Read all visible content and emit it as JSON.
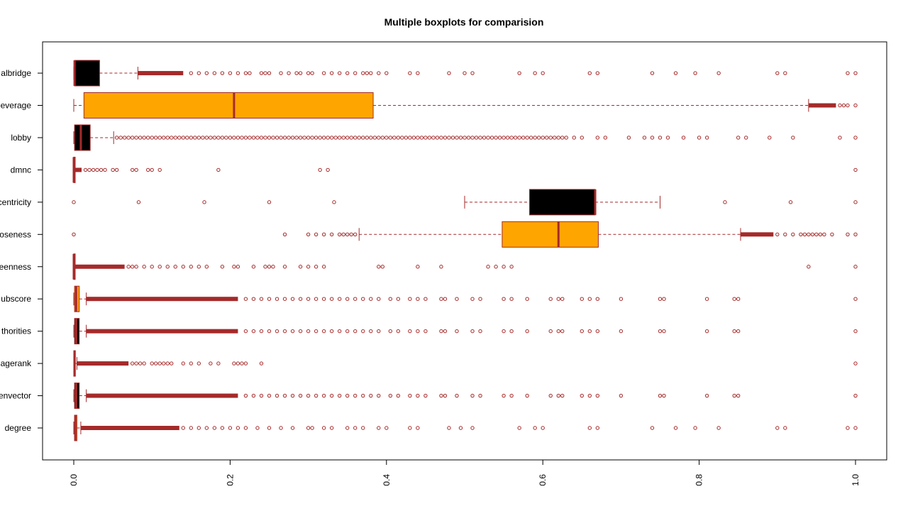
{
  "chart_data": {
    "type": "boxplot",
    "title": "Multiple boxplots for comparision",
    "xlabel": "",
    "ylabel": "",
    "horizontal": true,
    "xlim": [
      0,
      1
    ],
    "x_ticks": [
      "0.0",
      "0.2",
      "0.4",
      "0.6",
      "0.8",
      "1.0"
    ],
    "x_tick_values": [
      0,
      0.2,
      0.4,
      0.6,
      0.8,
      1.0
    ],
    "grid": false,
    "legend": "none",
    "colors": {
      "outline": "#a52a2a",
      "fill_black": "#000000",
      "fill_orange": "#ffa500"
    },
    "series": [
      {
        "name": "degree",
        "label": "degree",
        "fill": "#ffa500",
        "whisker_low": 0.0,
        "q1": 0.001,
        "median": 0.002,
        "q3": 0.004,
        "whisker_high": 0.009,
        "dense_outliers": [
          0.009,
          0.135
        ],
        "outliers": [
          0.14,
          0.15,
          0.16,
          0.17,
          0.18,
          0.19,
          0.2,
          0.21,
          0.22,
          0.235,
          0.25,
          0.265,
          0.28,
          0.3,
          0.305,
          0.32,
          0.33,
          0.35,
          0.36,
          0.37,
          0.39,
          0.4,
          0.43,
          0.44,
          0.48,
          0.495,
          0.51,
          0.57,
          0.59,
          0.6,
          0.66,
          0.67,
          0.74,
          0.77,
          0.795,
          0.825,
          0.9,
          0.91,
          0.99,
          1.0
        ]
      },
      {
        "name": "eigenvector",
        "label": "envector",
        "fill": "#000000",
        "whisker_low": 0.0,
        "q1": 0.001,
        "median": 0.003,
        "q3": 0.007,
        "whisker_high": 0.016,
        "dense_outliers": [
          0.016,
          0.21
        ],
        "outliers": [
          0.22,
          0.23,
          0.24,
          0.25,
          0.26,
          0.27,
          0.28,
          0.29,
          0.3,
          0.31,
          0.32,
          0.33,
          0.34,
          0.35,
          0.36,
          0.37,
          0.38,
          0.39,
          0.405,
          0.415,
          0.43,
          0.44,
          0.45,
          0.47,
          0.475,
          0.49,
          0.51,
          0.52,
          0.55,
          0.56,
          0.58,
          0.61,
          0.62,
          0.625,
          0.65,
          0.66,
          0.67,
          0.7,
          0.75,
          0.755,
          0.81,
          0.845,
          0.85,
          1.0
        ]
      },
      {
        "name": "pagerank",
        "label": "agerank",
        "fill": "#ffa500",
        "whisker_low": 0.0,
        "q1": 0.0,
        "median": 0.001,
        "q3": 0.002,
        "whisker_high": 0.004,
        "dense_outliers": [
          0.004,
          0.07
        ],
        "outliers": [
          0.075,
          0.08,
          0.085,
          0.09,
          0.1,
          0.105,
          0.11,
          0.115,
          0.12,
          0.125,
          0.14,
          0.15,
          0.16,
          0.175,
          0.185,
          0.205,
          0.21,
          0.215,
          0.22,
          0.24,
          1.0
        ]
      },
      {
        "name": "authorities",
        "label": "thorities",
        "fill": "#000000",
        "whisker_low": 0.0,
        "q1": 0.001,
        "median": 0.003,
        "q3": 0.007,
        "whisker_high": 0.016,
        "dense_outliers": [
          0.016,
          0.21
        ],
        "outliers": [
          0.22,
          0.23,
          0.24,
          0.25,
          0.26,
          0.27,
          0.28,
          0.29,
          0.3,
          0.31,
          0.32,
          0.33,
          0.34,
          0.35,
          0.36,
          0.37,
          0.38,
          0.39,
          0.405,
          0.415,
          0.43,
          0.44,
          0.45,
          0.47,
          0.475,
          0.49,
          0.51,
          0.52,
          0.55,
          0.56,
          0.58,
          0.61,
          0.62,
          0.625,
          0.65,
          0.66,
          0.67,
          0.7,
          0.75,
          0.755,
          0.81,
          0.845,
          0.85,
          1.0
        ]
      },
      {
        "name": "hubscore",
        "label": "ubscore",
        "fill": "#ffa500",
        "whisker_low": 0.0,
        "q1": 0.001,
        "median": 0.003,
        "q3": 0.007,
        "whisker_high": 0.016,
        "dense_outliers": [
          0.016,
          0.21
        ],
        "outliers": [
          0.22,
          0.23,
          0.24,
          0.25,
          0.26,
          0.27,
          0.28,
          0.29,
          0.3,
          0.31,
          0.32,
          0.33,
          0.34,
          0.35,
          0.36,
          0.37,
          0.38,
          0.39,
          0.405,
          0.415,
          0.43,
          0.44,
          0.45,
          0.47,
          0.475,
          0.49,
          0.51,
          0.52,
          0.55,
          0.56,
          0.58,
          0.61,
          0.62,
          0.625,
          0.65,
          0.66,
          0.67,
          0.7,
          0.75,
          0.755,
          0.81,
          0.845,
          0.85,
          1.0
        ]
      },
      {
        "name": "betweenness",
        "label": "eenness",
        "fill": "#000000",
        "whisker_low": 0.0,
        "q1": 0.0,
        "median": 0.0,
        "q3": 0.0,
        "whisker_high": 0.001,
        "dense_outliers": [
          0.001,
          0.065
        ],
        "outliers": [
          0.07,
          0.075,
          0.08,
          0.09,
          0.1,
          0.11,
          0.12,
          0.13,
          0.14,
          0.15,
          0.16,
          0.17,
          0.19,
          0.205,
          0.21,
          0.23,
          0.245,
          0.25,
          0.255,
          0.27,
          0.29,
          0.3,
          0.31,
          0.32,
          0.39,
          0.395,
          0.44,
          0.47,
          0.53,
          0.54,
          0.55,
          0.56,
          0.94,
          1.0
        ]
      },
      {
        "name": "closeness",
        "label": "oseness",
        "fill": "#ffa500",
        "whisker_low": 0.365,
        "q1": 0.548,
        "median": 0.62,
        "q3": 0.671,
        "whisker_high": 0.853,
        "dense_outliers": [
          0.853,
          0.895
        ],
        "outliers": [
          0.0,
          0.27,
          0.3,
          0.31,
          0.32,
          0.33,
          0.34,
          0.345,
          0.35,
          0.355,
          0.36,
          0.9,
          0.91,
          0.92,
          0.93,
          0.935,
          0.94,
          0.945,
          0.95,
          0.955,
          0.96,
          0.97,
          0.99,
          1.0
        ]
      },
      {
        "name": "eccentricity",
        "label": "centricity",
        "fill": "#000000",
        "whisker_low": 0.5,
        "q1": 0.583,
        "median": 0.667,
        "q3": 0.667,
        "whisker_high": 0.75,
        "dense_outliers": [],
        "outliers": [
          0.0,
          0.083,
          0.167,
          0.25,
          0.333,
          0.833,
          0.917,
          1.0
        ]
      },
      {
        "name": "dmnc",
        "label": "dmnc",
        "fill": "#ffa500",
        "whisker_low": 0.0,
        "q1": 0.0,
        "median": 0.0,
        "q3": 0.0,
        "whisker_high": 0.0,
        "dense_outliers": [
          0.0,
          0.01
        ],
        "outliers": [
          0.015,
          0.02,
          0.025,
          0.03,
          0.035,
          0.04,
          0.05,
          0.055,
          0.075,
          0.08,
          0.095,
          0.1,
          0.11,
          0.185,
          0.315,
          0.325,
          1.0
        ]
      },
      {
        "name": "lobby",
        "label": "lobby",
        "fill": "#000000",
        "whisker_low": 0.0,
        "q1": 0.001,
        "median": 0.009,
        "q3": 0.021,
        "whisker_high": 0.051,
        "dense_outliers": [],
        "outliers": [
          0.055,
          0.06,
          0.065,
          0.07,
          0.075,
          0.08,
          0.085,
          0.09,
          0.095,
          0.1,
          0.105,
          0.11,
          0.115,
          0.12,
          0.125,
          0.13,
          0.135,
          0.14,
          0.145,
          0.15,
          0.155,
          0.16,
          0.165,
          0.17,
          0.175,
          0.18,
          0.185,
          0.19,
          0.195,
          0.2,
          0.205,
          0.21,
          0.215,
          0.22,
          0.225,
          0.23,
          0.235,
          0.24,
          0.245,
          0.25,
          0.255,
          0.26,
          0.265,
          0.27,
          0.275,
          0.28,
          0.285,
          0.29,
          0.295,
          0.3,
          0.305,
          0.31,
          0.315,
          0.32,
          0.325,
          0.33,
          0.335,
          0.34,
          0.345,
          0.35,
          0.355,
          0.36,
          0.365,
          0.37,
          0.375,
          0.38,
          0.385,
          0.39,
          0.395,
          0.4,
          0.405,
          0.41,
          0.415,
          0.42,
          0.425,
          0.43,
          0.435,
          0.44,
          0.445,
          0.45,
          0.455,
          0.46,
          0.465,
          0.47,
          0.475,
          0.48,
          0.485,
          0.49,
          0.495,
          0.5,
          0.505,
          0.51,
          0.515,
          0.52,
          0.525,
          0.53,
          0.535,
          0.54,
          0.545,
          0.55,
          0.555,
          0.56,
          0.565,
          0.57,
          0.575,
          0.58,
          0.585,
          0.59,
          0.595,
          0.6,
          0.605,
          0.61,
          0.615,
          0.62,
          0.625,
          0.63,
          0.64,
          0.65,
          0.67,
          0.68,
          0.71,
          0.73,
          0.74,
          0.75,
          0.76,
          0.78,
          0.8,
          0.81,
          0.85,
          0.86,
          0.89,
          0.92,
          0.98,
          1.0
        ]
      },
      {
        "name": "leverage",
        "label": "everage",
        "fill": "#ffa500",
        "whisker_low": 0.0,
        "q1": 0.013,
        "median": 0.205,
        "q3": 0.383,
        "whisker_high": 0.94,
        "dense_outliers": [
          0.94,
          0.975
        ],
        "outliers": [
          0.98,
          0.985,
          0.99,
          1.0
        ]
      },
      {
        "name": "globalbridge",
        "label": "albridge",
        "fill": "#000000",
        "whisker_low": 0.0,
        "q1": 0.001,
        "median": 0.001,
        "q3": 0.033,
        "whisker_high": 0.082,
        "dense_outliers": [
          0.082,
          0.14
        ],
        "outliers": [
          0.15,
          0.16,
          0.17,
          0.18,
          0.19,
          0.2,
          0.21,
          0.22,
          0.225,
          0.24,
          0.245,
          0.25,
          0.265,
          0.275,
          0.285,
          0.29,
          0.3,
          0.305,
          0.32,
          0.33,
          0.34,
          0.35,
          0.36,
          0.37,
          0.375,
          0.38,
          0.39,
          0.4,
          0.43,
          0.44,
          0.48,
          0.5,
          0.51,
          0.57,
          0.59,
          0.6,
          0.66,
          0.67,
          0.74,
          0.77,
          0.795,
          0.825,
          0.9,
          0.91,
          0.99,
          1.0
        ]
      }
    ]
  }
}
